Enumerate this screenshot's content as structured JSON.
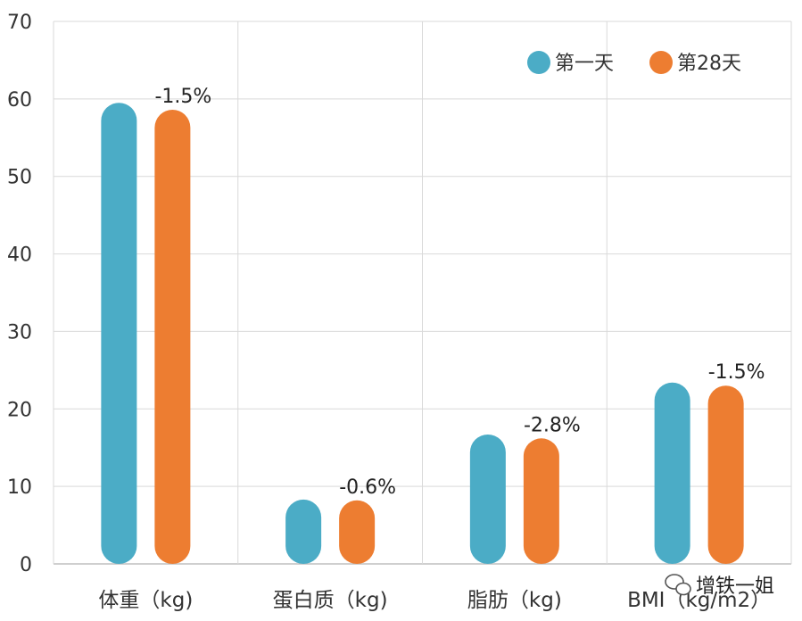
{
  "chart_data": {
    "type": "bar",
    "categories": [
      "体重（kg)",
      "蛋白质（kg)",
      "脂肪（kg)",
      "BMI（kg/m2）"
    ],
    "series": [
      {
        "name": "第一天",
        "color": "#4bacc6",
        "values": [
          59.5,
          8.3,
          16.7,
          23.4
        ]
      },
      {
        "name": "第28天",
        "color": "#ed7d31",
        "values": [
          58.6,
          8.2,
          16.2,
          23.0
        ]
      }
    ],
    "annotations": [
      "-1.5%",
      "-0.6%",
      "-2.8%",
      "-1.5%"
    ],
    "ylim": [
      0,
      70
    ],
    "yticks": [
      0,
      10,
      20,
      30,
      40,
      50,
      60,
      70
    ],
    "grid": true,
    "legend_position": "top-right",
    "title": "",
    "xlabel": "",
    "ylabel": ""
  },
  "watermark": {
    "text": "增铁一姐",
    "icon": "wechat-icon"
  }
}
